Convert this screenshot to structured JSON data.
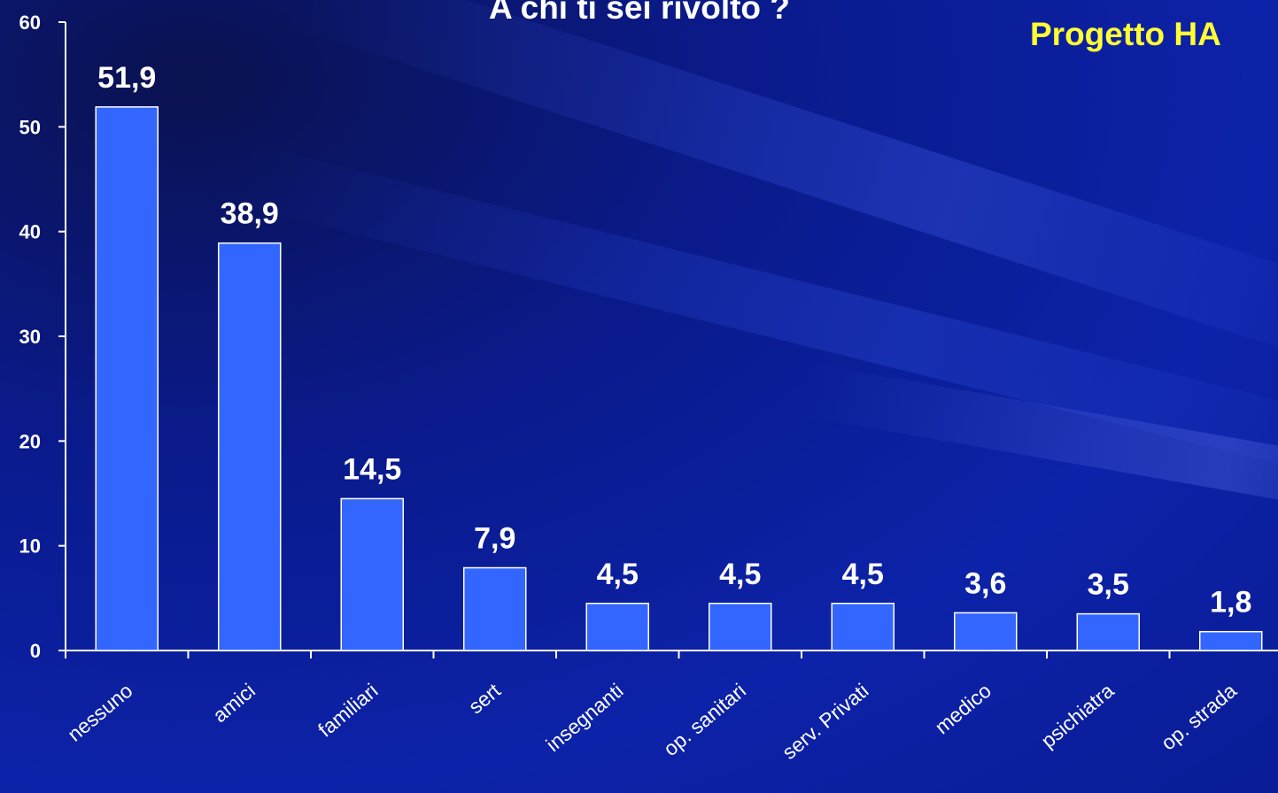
{
  "chart_data": {
    "type": "bar",
    "title": "A chi ti sei rivolto ?",
    "project_label": "Progetto HA",
    "categories": [
      "nessuno",
      "amici",
      "familiari",
      "sert",
      "insegnanti",
      "op. sanitari",
      "serv. Privati",
      "medico",
      "psichiatra",
      "op. strada"
    ],
    "values": [
      51.9,
      38.9,
      14.5,
      7.9,
      4.5,
      4.5,
      4.5,
      3.6,
      3.5,
      1.8
    ],
    "data_labels": [
      "51,9",
      "38,9",
      "14,5",
      "7,9",
      "4,5",
      "4,5",
      "4,5",
      "3,6",
      "3,5",
      "1,8"
    ],
    "y_ticks": [
      0,
      10,
      20,
      30,
      40,
      50,
      60
    ],
    "ylim": [
      0,
      60
    ],
    "xlabel": "",
    "ylabel": "",
    "grid": false,
    "legend": "none",
    "bar_color": "#3366ff",
    "bar_edge_color": "#ffffff",
    "axis_color": "#ffffff"
  }
}
